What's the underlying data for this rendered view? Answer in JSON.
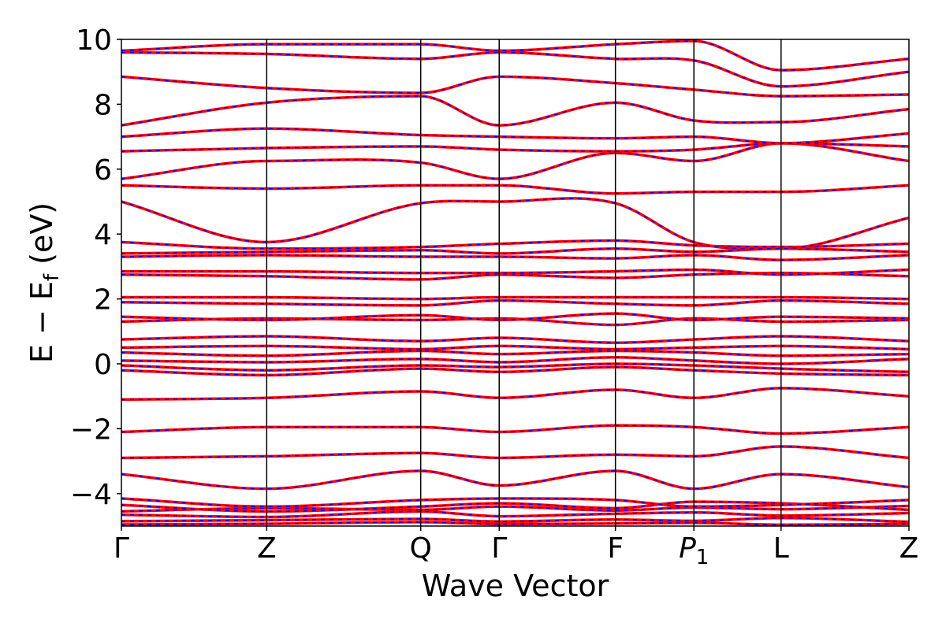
{
  "chart_data": {
    "type": "line",
    "title": "",
    "xlabel": "Wave Vector",
    "ylabel": "E − E",
    "ylabel_sub": "f",
    "ylabel_unit": " (eV)",
    "ylim": [
      -5,
      10
    ],
    "yticks": [
      -4,
      -2,
      0,
      2,
      4,
      6,
      8,
      10
    ],
    "ytick_labels": [
      "−4",
      "−2",
      "0",
      "2",
      "4",
      "6",
      "8",
      "10"
    ],
    "grid": false,
    "legend": "none",
    "kpath": [
      {
        "label": "Γ",
        "pos": 0.0
      },
      {
        "label": "Z",
        "pos": 1.0
      },
      {
        "label": "Q",
        "pos": 2.06
      },
      {
        "label": "Γ",
        "pos": 2.6
      },
      {
        "label": "F",
        "pos": 3.4
      },
      {
        "label": "P",
        "sub": "1",
        "pos": 3.94
      },
      {
        "label": "L",
        "pos": 4.54
      },
      {
        "label": "Z",
        "pos": 5.42
      }
    ],
    "colors": {
      "solid": "#ff0000",
      "dashed": "#0000ff",
      "frame": "#000000"
    },
    "series": [
      {
        "values": [
          -4.95,
          -4.93,
          -4.88,
          -4.94,
          -4.92,
          -4.9,
          -4.96,
          -4.93
        ]
      },
      {
        "values": [
          -4.85,
          -4.82,
          -4.78,
          -4.86,
          -4.8,
          -4.84,
          -4.75,
          -4.87
        ]
      },
      {
        "values": [
          -4.65,
          -4.72,
          -4.55,
          -4.7,
          -4.62,
          -4.58,
          -4.68,
          -4.6
        ]
      },
      {
        "values": [
          -4.55,
          -4.45,
          -4.5,
          -4.4,
          -4.52,
          -4.43,
          -4.48,
          -4.38
        ]
      },
      {
        "values": [
          -4.35,
          -4.55,
          -4.4,
          -4.3,
          -4.45,
          -4.25,
          -4.3,
          -4.5
        ]
      },
      {
        "values": [
          -4.15,
          -4.4,
          -4.2,
          -4.15,
          -4.2,
          -4.4,
          -4.35,
          -4.2
        ]
      },
      {
        "values": [
          -3.4,
          -3.85,
          -3.3,
          -3.75,
          -3.3,
          -3.85,
          -3.4,
          -3.8
        ]
      },
      {
        "values": [
          -2.9,
          -2.85,
          -2.75,
          -2.9,
          -2.8,
          -2.85,
          -2.55,
          -2.9
        ]
      },
      {
        "values": [
          -2.1,
          -1.95,
          -1.95,
          -2.1,
          -1.9,
          -1.95,
          -2.15,
          -1.95
        ]
      },
      {
        "values": [
          -1.1,
          -1.05,
          -0.85,
          -1.05,
          -0.8,
          -1.05,
          -0.75,
          -1.0
        ]
      },
      {
        "values": [
          -0.2,
          -0.35,
          -0.15,
          -0.25,
          -0.1,
          -0.2,
          -0.3,
          -0.35
        ]
      },
      {
        "values": [
          -0.05,
          -0.2,
          -0.05,
          -0.1,
          0.0,
          -0.05,
          -0.15,
          -0.25
        ]
      },
      {
        "values": [
          0.1,
          0.05,
          0.15,
          0.05,
          0.2,
          0.1,
          0.0,
          0.15
        ]
      },
      {
        "values": [
          0.35,
          0.25,
          0.4,
          0.3,
          0.4,
          0.35,
          0.25,
          0.3
        ]
      },
      {
        "values": [
          0.5,
          0.55,
          0.45,
          0.55,
          0.45,
          0.5,
          0.55,
          0.45
        ]
      },
      {
        "values": [
          0.75,
          0.85,
          0.7,
          0.8,
          0.65,
          0.75,
          0.85,
          0.7
        ]
      },
      {
        "values": [
          1.3,
          1.4,
          1.35,
          1.4,
          1.2,
          1.4,
          1.3,
          1.35
        ]
      },
      {
        "values": [
          1.45,
          1.35,
          1.5,
          1.35,
          1.55,
          1.35,
          1.45,
          1.4
        ]
      },
      {
        "values": [
          1.9,
          1.85,
          1.8,
          1.95,
          1.85,
          1.8,
          1.95,
          1.85
        ]
      },
      {
        "values": [
          2.05,
          2.05,
          2.0,
          2.05,
          2.05,
          2.05,
          2.05,
          2.0
        ]
      },
      {
        "values": [
          2.75,
          2.7,
          2.6,
          2.75,
          2.65,
          2.75,
          2.8,
          2.7
        ]
      },
      {
        "values": [
          2.85,
          2.85,
          2.8,
          2.8,
          2.85,
          2.9,
          2.75,
          2.9
        ]
      },
      {
        "values": [
          3.3,
          3.35,
          3.3,
          3.3,
          3.25,
          3.35,
          3.2,
          3.35
        ]
      },
      {
        "values": [
          3.4,
          3.45,
          3.5,
          3.4,
          3.55,
          3.45,
          3.55,
          3.45
        ]
      },
      {
        "values": [
          3.75,
          3.55,
          3.6,
          3.7,
          3.8,
          3.65,
          3.6,
          3.7
        ]
      },
      {
        "values": [
          5.0,
          3.75,
          4.95,
          5.0,
          4.95,
          3.75,
          3.55,
          4.5
        ]
      },
      {
        "values": [
          5.5,
          5.4,
          5.5,
          5.5,
          5.25,
          5.3,
          5.3,
          5.5
        ]
      },
      {
        "values": [
          5.7,
          6.25,
          6.2,
          5.7,
          6.5,
          6.25,
          6.8,
          6.25
        ]
      },
      {
        "values": [
          6.55,
          6.65,
          6.7,
          6.6,
          6.55,
          6.6,
          6.8,
          6.7
        ]
      },
      {
        "values": [
          7.0,
          7.25,
          7.05,
          7.0,
          6.95,
          7.0,
          6.8,
          7.1
        ]
      },
      {
        "values": [
          7.35,
          8.05,
          8.25,
          7.35,
          8.05,
          7.5,
          7.45,
          7.85
        ]
      },
      {
        "values": [
          8.85,
          8.5,
          8.35,
          8.85,
          8.65,
          8.45,
          8.25,
          8.3
        ]
      },
      {
        "values": [
          9.6,
          9.55,
          9.4,
          9.6,
          9.4,
          9.35,
          8.55,
          9.0
        ]
      },
      {
        "values": [
          9.65,
          9.85,
          9.85,
          9.65,
          9.85,
          9.95,
          9.05,
          9.4
        ]
      }
    ]
  }
}
